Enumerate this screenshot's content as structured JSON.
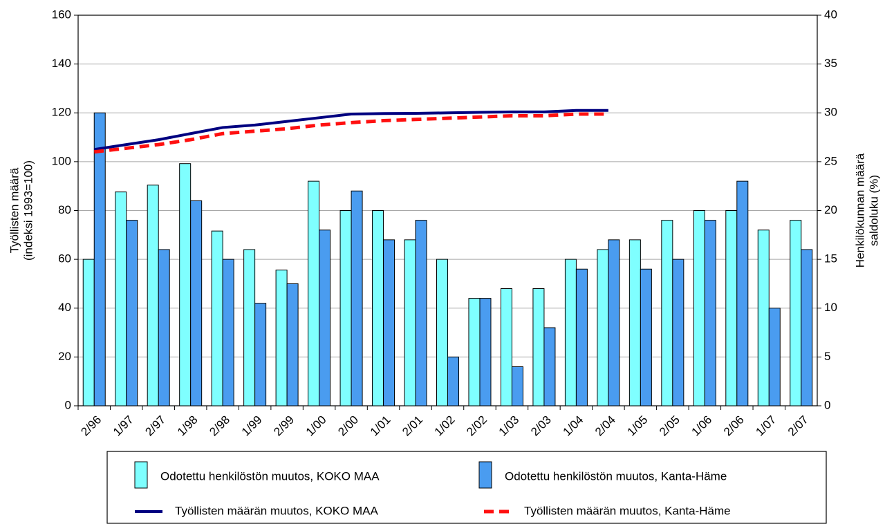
{
  "chart_data": {
    "type": "bar",
    "y_label": [
      "Työllisten määrä",
      "(indeksi 1993=100)"
    ],
    "y2_label": [
      "Henkilökunnan määrä",
      "saldoluku (%)"
    ],
    "categories": [
      "2/96",
      "1/97",
      "2/97",
      "1/98",
      "2/98",
      "1/99",
      "2/99",
      "1/00",
      "2/00",
      "1/01",
      "2/01",
      "1/02",
      "2/02",
      "1/03",
      "2/03",
      "1/04",
      "2/04",
      "1/05",
      "2/05",
      "1/06",
      "2/06",
      "1/07",
      "2/07"
    ],
    "series": [
      {
        "name": "Odotettu henkilöstön muutos, KOKO MAA",
        "type": "bar",
        "axis": "y2",
        "color": "#7fffff",
        "values": [
          15,
          21.9,
          22.6,
          24.8,
          17.9,
          16,
          13.9,
          23,
          20,
          20,
          17,
          15,
          11,
          12,
          12,
          15,
          16,
          17,
          19,
          20,
          20,
          18,
          19
        ]
      },
      {
        "name": "Odotettu henkilöstön muutos, Kanta-Häme",
        "type": "bar",
        "axis": "y2",
        "color": "#4a9cf0",
        "values": [
          30,
          19,
          16,
          21,
          15,
          10.5,
          12.5,
          18,
          22,
          17,
          19,
          5,
          11,
          4,
          8,
          14,
          17,
          14,
          15,
          19,
          23,
          10,
          16
        ]
      },
      {
        "name": "Työllisten määrän muutos, KOKO MAA",
        "type": "line",
        "color": "#000080",
        "dashed": false,
        "values": [
          105,
          107,
          109,
          111.5,
          114,
          115,
          116.5,
          118,
          119.5,
          119.7,
          119.8,
          120,
          120.2,
          120.4,
          120.4,
          121,
          121,
          null,
          null,
          null,
          null,
          null,
          null
        ]
      },
      {
        "name": "Työllisten määrän muutos, Kanta-Häme",
        "type": "line",
        "color": "#ff1010",
        "dashed": true,
        "values": [
          104,
          105.5,
          107,
          109,
          111.5,
          112.5,
          113.5,
          115,
          116,
          116.8,
          117.3,
          117.8,
          118.3,
          118.8,
          118.8,
          119.5,
          119.5,
          null,
          null,
          null,
          null,
          null,
          null
        ]
      }
    ],
    "ylim": [
      0,
      160
    ],
    "yticks": [
      0,
      20,
      40,
      60,
      80,
      100,
      120,
      140,
      160
    ],
    "y2lim": [
      0,
      40
    ],
    "y2ticks": [
      0,
      5,
      10,
      15,
      20,
      25,
      30,
      35,
      40
    ],
    "grid": true
  }
}
